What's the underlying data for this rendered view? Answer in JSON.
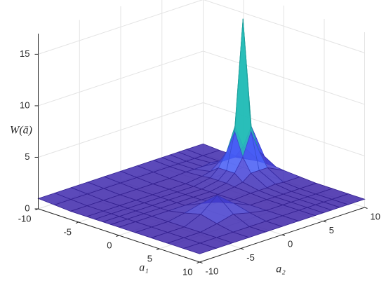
{
  "chart_data": {
    "type": "surface",
    "xlabel": "a₁",
    "ylabel": "a₂",
    "zlabel": "W(ā)",
    "x": [
      -10,
      -8,
      -6,
      -4,
      -3,
      -2,
      -1,
      0,
      2,
      4,
      6,
      8,
      10
    ],
    "y": [
      -10,
      -8,
      -6,
      -4,
      -2,
      0,
      2,
      4,
      5,
      6,
      7,
      8,
      10
    ],
    "z": [
      [
        1.0,
        1.0,
        1.0,
        1.0,
        1.0,
        1.0,
        1.0,
        1.0,
        1.0,
        1.0,
        1.0,
        1.0,
        1.0
      ],
      [
        0.9,
        0.9,
        0.9,
        0.9,
        0.9,
        0.9,
        0.9,
        0.9,
        0.9,
        0.9,
        0.9,
        0.9,
        0.9
      ],
      [
        0.8,
        0.8,
        0.8,
        0.8,
        0.8,
        0.8,
        0.8,
        0.9,
        0.9,
        0.9,
        1.0,
        0.9,
        0.9
      ],
      [
        0.8,
        0.8,
        0.8,
        0.8,
        0.8,
        0.8,
        0.8,
        1.0,
        1.2,
        1.8,
        1.8,
        1.8,
        1.0
      ],
      [
        0.8,
        0.8,
        0.8,
        0.8,
        0.8,
        0.8,
        0.8,
        1.1,
        1.8,
        3.1,
        5.3,
        3.1,
        1.1
      ],
      [
        0.8,
        0.8,
        0.8,
        0.8,
        0.8,
        0.8,
        0.8,
        1.1,
        1.8,
        5.3,
        16.0,
        5.3,
        1.1
      ],
      [
        0.8,
        0.8,
        0.8,
        0.8,
        0.8,
        0.8,
        0.8,
        1.1,
        1.8,
        3.1,
        5.3,
        3.1,
        1.1
      ],
      [
        0.8,
        0.8,
        0.8,
        0.8,
        0.8,
        0.8,
        0.8,
        1.0,
        1.2,
        1.8,
        1.8,
        1.8,
        1.0
      ],
      [
        0.8,
        0.8,
        0.8,
        1.1,
        1.5,
        1.1,
        0.8,
        0.9,
        0.9,
        0.9,
        1.0,
        0.9,
        0.9
      ],
      [
        0.8,
        0.8,
        0.8,
        1.5,
        2.8,
        1.5,
        0.8,
        0.8,
        0.8,
        0.8,
        0.8,
        0.8,
        0.8
      ],
      [
        0.8,
        0.8,
        0.8,
        1.1,
        1.5,
        1.1,
        0.8,
        0.8,
        0.8,
        0.8,
        0.8,
        0.8,
        0.8
      ],
      [
        0.8,
        0.8,
        0.8,
        0.8,
        0.8,
        0.8,
        0.8,
        0.8,
        0.8,
        0.8,
        0.8,
        0.8,
        0.8
      ],
      [
        0.8,
        0.8,
        0.8,
        0.8,
        0.8,
        0.8,
        0.8,
        0.8,
        0.8,
        0.8,
        0.8,
        0.8,
        0.8
      ]
    ],
    "xlim": [
      -10,
      10
    ],
    "ylim": [
      -10,
      10
    ],
    "zlim": [
      0,
      17
    ],
    "xticks": [
      -10,
      -5,
      0,
      5,
      10
    ],
    "yticks": [
      -10,
      -5,
      0,
      5,
      10
    ],
    "zticks": [
      0,
      5,
      10,
      15
    ],
    "grid": true,
    "colormap": "parula"
  }
}
